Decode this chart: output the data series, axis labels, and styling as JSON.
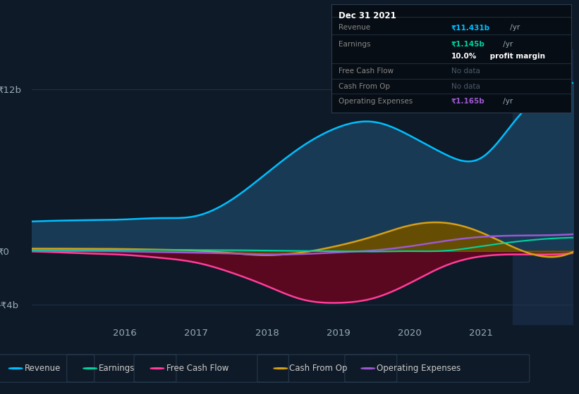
{
  "bg_color": "#0e1a27",
  "plot_bg_color": "#0e1a27",
  "y_ticks_labels": [
    "₹12b",
    "₹0",
    "-₹4b"
  ],
  "y_ticks_vals": [
    12,
    0,
    -4
  ],
  "ylim": [
    -5.5,
    15.0
  ],
  "xlim": [
    2014.7,
    2022.3
  ],
  "x_ticks": [
    2016,
    2017,
    2018,
    2019,
    2020,
    2021
  ],
  "grid_color": "#1e3448",
  "legend": [
    {
      "label": "Revenue",
      "color": "#00bfff"
    },
    {
      "label": "Earnings",
      "color": "#00d4a0"
    },
    {
      "label": "Free Cash Flow",
      "color": "#ff3d9a"
    },
    {
      "label": "Cash From Op",
      "color": "#d4a017"
    },
    {
      "label": "Operating Expenses",
      "color": "#9b59d0"
    }
  ],
  "revenue_x": [
    2014.7,
    2015.0,
    2015.5,
    2016.0,
    2016.5,
    2017.0,
    2017.5,
    2018.0,
    2018.5,
    2019.0,
    2019.5,
    2020.0,
    2020.5,
    2021.0,
    2021.5,
    2021.8,
    2022.3
  ],
  "revenue_y": [
    2.2,
    2.25,
    2.3,
    2.35,
    2.45,
    2.6,
    3.8,
    5.8,
    7.8,
    9.2,
    9.6,
    8.6,
    7.2,
    6.9,
    9.8,
    11.4,
    12.5
  ],
  "revenue_color": "#00bfff",
  "revenue_fill": "#183a55",
  "earnings_x": [
    2014.7,
    2015.0,
    2015.5,
    2016.0,
    2016.5,
    2017.0,
    2017.5,
    2018.0,
    2018.5,
    2019.0,
    2019.5,
    2020.0,
    2020.5,
    2021.0,
    2021.5,
    2022.3
  ],
  "earnings_y": [
    0.07,
    0.07,
    0.08,
    0.09,
    0.09,
    0.08,
    0.07,
    0.04,
    0.01,
    -0.02,
    -0.04,
    -0.01,
    0.02,
    0.35,
    0.7,
    1.0
  ],
  "earnings_color": "#00d4a0",
  "fcf_x": [
    2014.7,
    2015.0,
    2015.5,
    2016.0,
    2016.5,
    2017.0,
    2017.5,
    2018.0,
    2018.5,
    2019.0,
    2019.5,
    2020.0,
    2020.5,
    2021.0,
    2021.5,
    2022.3
  ],
  "fcf_y": [
    -0.03,
    -0.08,
    -0.18,
    -0.28,
    -0.5,
    -0.85,
    -1.6,
    -2.6,
    -3.6,
    -3.85,
    -3.5,
    -2.4,
    -1.1,
    -0.4,
    -0.25,
    -0.15
  ],
  "fcf_color": "#ff3d9a",
  "fcf_fill": "#5a0820",
  "cop_x": [
    2014.7,
    2015.0,
    2015.5,
    2016.0,
    2016.5,
    2017.0,
    2017.5,
    2018.0,
    2018.5,
    2019.0,
    2019.5,
    2020.0,
    2020.5,
    2021.0,
    2021.5,
    2022.3
  ],
  "cop_y": [
    0.18,
    0.18,
    0.17,
    0.15,
    0.1,
    0.04,
    -0.15,
    -0.3,
    -0.1,
    0.4,
    1.1,
    1.9,
    2.1,
    1.4,
    0.2,
    -0.05
  ],
  "cop_color": "#d4a017",
  "cop_fill": "#6a4f00",
  "opex_x": [
    2014.7,
    2015.0,
    2015.5,
    2016.0,
    2016.5,
    2017.0,
    2017.5,
    2018.0,
    2018.5,
    2019.0,
    2019.5,
    2020.0,
    2020.5,
    2021.0,
    2021.5,
    2022.3
  ],
  "opex_y": [
    0.01,
    0.01,
    0.0,
    -0.03,
    -0.08,
    -0.12,
    -0.18,
    -0.25,
    -0.22,
    -0.1,
    0.05,
    0.35,
    0.75,
    1.05,
    1.15,
    1.25
  ],
  "opex_color": "#9b59d0",
  "highlight_x": 2021.45,
  "highlight_color": "#162840",
  "tooltip": {
    "title": "Dec 31 2021",
    "title_color": "#ffffff",
    "bg": "#070d14",
    "border": "#2a3d52",
    "rows": [
      {
        "label": "Revenue",
        "val": "₹11.431b",
        "suffix": " /yr",
        "val_color": "#00bfff",
        "lbl_color": "#888888"
      },
      {
        "label": "Earnings",
        "val": "₹1.145b",
        "suffix": " /yr",
        "val_color": "#00d4a0",
        "lbl_color": "#888888"
      },
      {
        "label": "",
        "val": "10.0%",
        "suffix": " profit margin",
        "val_color": "#ffffff",
        "lbl_color": "#888888",
        "bold": true
      },
      {
        "label": "Free Cash Flow",
        "val": "No data",
        "suffix": "",
        "val_color": "#4a5a6a",
        "lbl_color": "#888888"
      },
      {
        "label": "Cash From Op",
        "val": "No data",
        "suffix": "",
        "val_color": "#4a5a6a",
        "lbl_color": "#888888"
      },
      {
        "label": "Operating Expenses",
        "val": "₹1.165b",
        "suffix": " /yr",
        "val_color": "#9b59d0",
        "lbl_color": "#888888"
      }
    ]
  }
}
